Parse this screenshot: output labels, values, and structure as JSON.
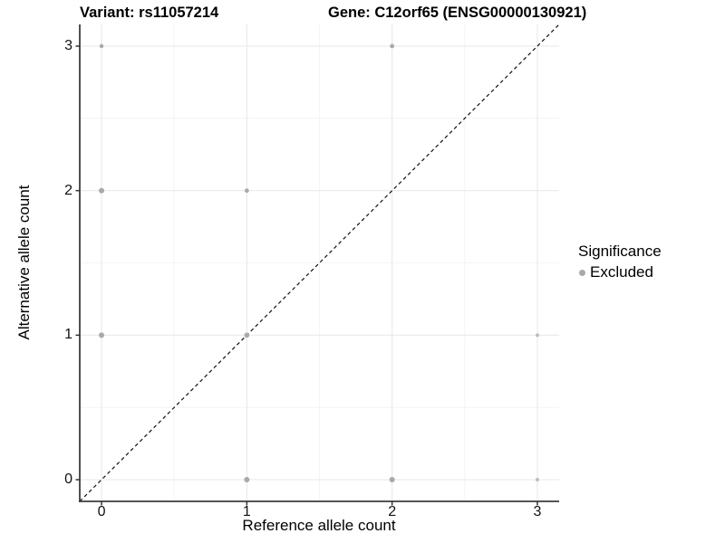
{
  "chart_data": {
    "type": "scatter",
    "titles": {
      "left": "Variant: rs11057214",
      "right": "Gene: C12orf65 (ENSG00000130921)"
    },
    "xlabel": "Reference allele count",
    "ylabel": "Alternative allele count",
    "xlim": [
      -0.15,
      3.15
    ],
    "ylim": [
      -0.15,
      3.15
    ],
    "xticks": [
      0,
      1,
      2,
      3
    ],
    "yticks": [
      0,
      1,
      2,
      3
    ],
    "minor_gridlines": [
      0.5,
      1.5,
      2.5
    ],
    "grid": true,
    "identity_line": {
      "style": "dashed",
      "color": "#111111",
      "from": [
        -0.15,
        -0.15
      ],
      "to": [
        3.15,
        3.15
      ]
    },
    "legend": {
      "title": "Significance",
      "position": "right",
      "entries": [
        {
          "label": "Excluded",
          "color": "#a9a9a9"
        }
      ]
    },
    "series": [
      {
        "name": "Excluded",
        "color": "#a9a9a9",
        "points": [
          {
            "x": 0,
            "y": 3,
            "r": 2.2
          },
          {
            "x": 2,
            "y": 3,
            "r": 2.4
          },
          {
            "x": 0,
            "y": 2,
            "r": 3.0
          },
          {
            "x": 1,
            "y": 2,
            "r": 2.4
          },
          {
            "x": 0,
            "y": 1,
            "r": 3.0
          },
          {
            "x": 1,
            "y": 1,
            "r": 2.8
          },
          {
            "x": 3,
            "y": 1,
            "r": 2.0,
            "color": "#bdbdbd"
          },
          {
            "x": 1,
            "y": 0,
            "r": 3.0
          },
          {
            "x": 2,
            "y": 0,
            "r": 3.0
          },
          {
            "x": 3,
            "y": 0,
            "r": 2.0,
            "color": "#bdbdbd"
          }
        ]
      }
    ]
  }
}
